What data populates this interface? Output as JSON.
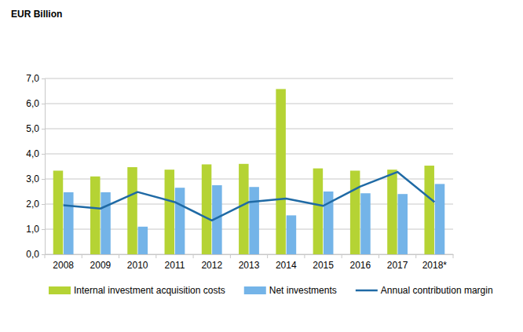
{
  "chart_data": {
    "type": "bar",
    "title": "EUR Billion",
    "categories": [
      "2008",
      "2009",
      "2010",
      "2011",
      "2012",
      "2013",
      "2014",
      "2015",
      "2016",
      "2017",
      "2018*"
    ],
    "series": [
      {
        "name": "Internal investment acquisition costs",
        "type": "bar",
        "color": "#b5d334",
        "values": [
          3.33,
          3.1,
          3.47,
          3.37,
          3.58,
          3.6,
          6.58,
          3.42,
          3.33,
          3.37,
          3.53
        ]
      },
      {
        "name": "Net investments",
        "type": "bar",
        "color": "#74b4e8",
        "values": [
          2.47,
          2.47,
          1.1,
          2.65,
          2.75,
          2.68,
          1.55,
          2.5,
          2.43,
          2.4,
          2.8
        ]
      },
      {
        "name": "Annual contribution margin",
        "type": "line",
        "color": "#1f6aa5",
        "values": [
          1.95,
          1.82,
          2.48,
          2.08,
          1.35,
          2.08,
          2.22,
          1.93,
          2.7,
          3.28,
          2.08
        ]
      }
    ],
    "ylim": [
      0,
      7
    ],
    "yticks": [
      {
        "value": 0,
        "label": "0,0"
      },
      {
        "value": 1,
        "label": "1,0"
      },
      {
        "value": 2,
        "label": "2,0"
      },
      {
        "value": 3,
        "label": "3,0"
      },
      {
        "value": 4,
        "label": "4,0"
      },
      {
        "value": 5,
        "label": "5,0"
      },
      {
        "value": 6,
        "label": "6,0"
      },
      {
        "value": 7,
        "label": "7,0"
      }
    ],
    "grid": true,
    "legend": "bottom"
  }
}
